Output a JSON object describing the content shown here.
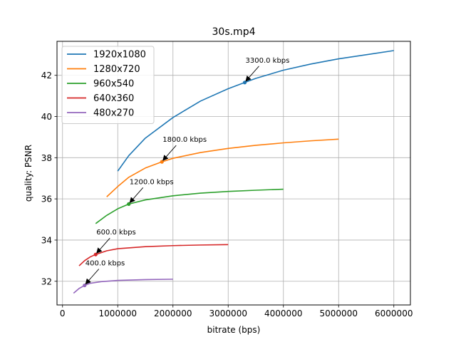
{
  "chart_data": {
    "type": "line",
    "title": "30s.mp4",
    "xlabel": "bitrate (bps)",
    "ylabel": "quality: PSNR",
    "xlim": [
      -100000,
      6300000
    ],
    "ylim": [
      30.85,
      43.65
    ],
    "xticks": [
      0,
      1000000,
      2000000,
      3000000,
      4000000,
      5000000,
      6000000
    ],
    "yticks": [
      32,
      34,
      36,
      38,
      40,
      42
    ],
    "grid": true,
    "legend_position": "top-left",
    "series": [
      {
        "name": "1920x1080",
        "color": "#1f77b4",
        "x": [
          1000000,
          1200000,
          1500000,
          2000000,
          2500000,
          3000000,
          3300000,
          3500000,
          4000000,
          4500000,
          5000000,
          5500000,
          6000000
        ],
        "y": [
          37.35,
          38.1,
          38.95,
          39.95,
          40.75,
          41.35,
          41.65,
          41.85,
          42.25,
          42.55,
          42.8,
          43.0,
          43.2
        ]
      },
      {
        "name": "1280x720",
        "color": "#ff7f0e",
        "x": [
          800000,
          1000000,
          1200000,
          1500000,
          1800000,
          2000000,
          2500000,
          3000000,
          3500000,
          4000000,
          4500000,
          5000000
        ],
        "y": [
          36.1,
          36.6,
          37.05,
          37.5,
          37.8,
          37.97,
          38.25,
          38.45,
          38.6,
          38.72,
          38.82,
          38.9
        ]
      },
      {
        "name": "960x540",
        "color": "#2ca02c",
        "x": [
          600000,
          800000,
          1000000,
          1200000,
          1500000,
          2000000,
          2500000,
          3000000,
          3500000,
          4000000
        ],
        "y": [
          34.8,
          35.2,
          35.52,
          35.75,
          35.95,
          36.15,
          36.28,
          36.36,
          36.42,
          36.47
        ]
      },
      {
        "name": "640x360",
        "color": "#d62728",
        "x": [
          300000,
          400000,
          500000,
          600000,
          800000,
          1000000,
          1500000,
          2000000,
          2500000,
          3000000
        ],
        "y": [
          32.75,
          33.0,
          33.18,
          33.3,
          33.48,
          33.58,
          33.68,
          33.73,
          33.76,
          33.78
        ]
      },
      {
        "name": "480x270",
        "color": "#9467bd",
        "x": [
          200000,
          300000,
          400000,
          500000,
          700000,
          1000000,
          1500000,
          2000000
        ],
        "y": [
          31.42,
          31.65,
          31.8,
          31.9,
          31.98,
          32.04,
          32.08,
          32.1
        ]
      }
    ],
    "annotations": [
      {
        "text": "3300.0 kbps",
        "x": 3300000,
        "y": 41.65,
        "color": "#1f77b4"
      },
      {
        "text": "1800.0 kbps",
        "x": 1800000,
        "y": 37.8,
        "color": "#ff7f0e"
      },
      {
        "text": "1200.0 kbps",
        "x": 1200000,
        "y": 35.75,
        "color": "#2ca02c"
      },
      {
        "text": "600.0 kbps",
        "x": 600000,
        "y": 33.3,
        "color": "#d62728"
      },
      {
        "text": "400.0 kbps",
        "x": 400000,
        "y": 31.8,
        "color": "#9467bd"
      }
    ]
  }
}
